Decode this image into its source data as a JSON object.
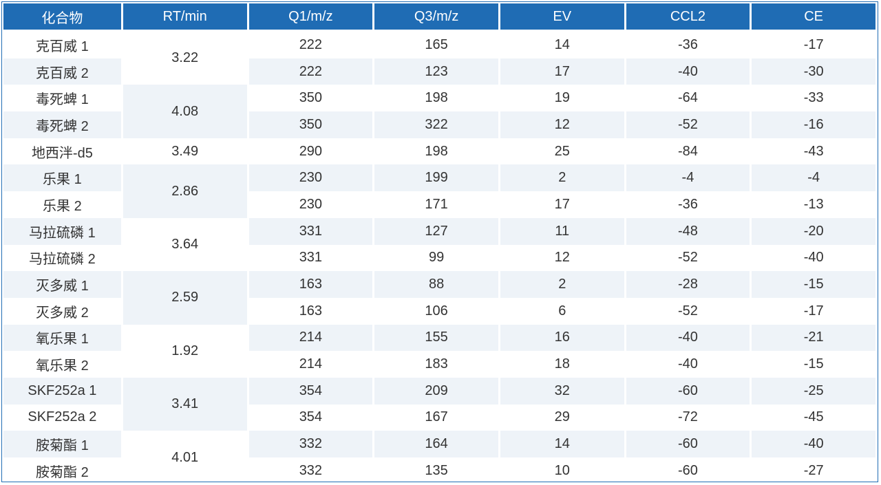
{
  "headers": [
    "化合物",
    "RT/min",
    "Q1/m/z",
    "Q3/m/z",
    "EV",
    "CCL2",
    "CE"
  ],
  "groups": [
    {
      "rt": "3.22",
      "rows": [
        {
          "compound": "克百威 1",
          "q1": "222",
          "q3": "165",
          "ev": "14",
          "ccl2": "-36",
          "ce": "-17"
        },
        {
          "compound": "克百威 2",
          "q1": "222",
          "q3": "123",
          "ev": "17",
          "ccl2": "-40",
          "ce": "-30"
        }
      ]
    },
    {
      "rt": "4.08",
      "rows": [
        {
          "compound": "毒死蜱 1",
          "q1": "350",
          "q3": "198",
          "ev": "19",
          "ccl2": "-64",
          "ce": "-33"
        },
        {
          "compound": "毒死蜱 2",
          "q1": "350",
          "q3": "322",
          "ev": "12",
          "ccl2": "-52",
          "ce": "-16"
        }
      ]
    },
    {
      "rt": "3.49",
      "rows": [
        {
          "compound": "地西泮-d5",
          "q1": "290",
          "q3": "198",
          "ev": "25",
          "ccl2": "-84",
          "ce": "-43"
        }
      ]
    },
    {
      "rt": "2.86",
      "rows": [
        {
          "compound": "乐果 1",
          "q1": "230",
          "q3": "199",
          "ev": "2",
          "ccl2": "-4",
          "ce": "-4"
        },
        {
          "compound": "乐果 2",
          "q1": "230",
          "q3": "171",
          "ev": "17",
          "ccl2": "-36",
          "ce": "-13"
        }
      ]
    },
    {
      "rt": "3.64",
      "rows": [
        {
          "compound": "马拉硫磷 1",
          "q1": "331",
          "q3": "127",
          "ev": "11",
          "ccl2": "-48",
          "ce": "-20"
        },
        {
          "compound": "马拉硫磷 2",
          "q1": "331",
          "q3": "99",
          "ev": "12",
          "ccl2": "-52",
          "ce": "-40"
        }
      ]
    },
    {
      "rt": "2.59",
      "rows": [
        {
          "compound": "灭多威 1",
          "q1": "163",
          "q3": "88",
          "ev": "2",
          "ccl2": "-28",
          "ce": "-15"
        },
        {
          "compound": "灭多威 2",
          "q1": "163",
          "q3": "106",
          "ev": "6",
          "ccl2": "-52",
          "ce": "-17"
        }
      ]
    },
    {
      "rt": "1.92",
      "rows": [
        {
          "compound": "氧乐果 1",
          "q1": "214",
          "q3": "155",
          "ev": "16",
          "ccl2": "-40",
          "ce": "-21"
        },
        {
          "compound": "氧乐果 2",
          "q1": "214",
          "q3": "183",
          "ev": "18",
          "ccl2": "-40",
          "ce": "-15"
        }
      ]
    },
    {
      "rt": "3.41",
      "rows": [
        {
          "compound": "SKF252a 1",
          "q1": "354",
          "q3": "209",
          "ev": "32",
          "ccl2": "-60",
          "ce": "-25"
        },
        {
          "compound": "SKF252a 2",
          "q1": "354",
          "q3": "167",
          "ev": "29",
          "ccl2": "-72",
          "ce": "-45"
        }
      ]
    },
    {
      "rt": "4.01",
      "rows": [
        {
          "compound": "胺菊酯 1",
          "q1": "332",
          "q3": "164",
          "ev": "14",
          "ccl2": "-60",
          "ce": "-40"
        },
        {
          "compound": "胺菊酯 2",
          "q1": "332",
          "q3": "135",
          "ev": "10",
          "ccl2": "-60",
          "ce": "-27"
        }
      ]
    }
  ]
}
